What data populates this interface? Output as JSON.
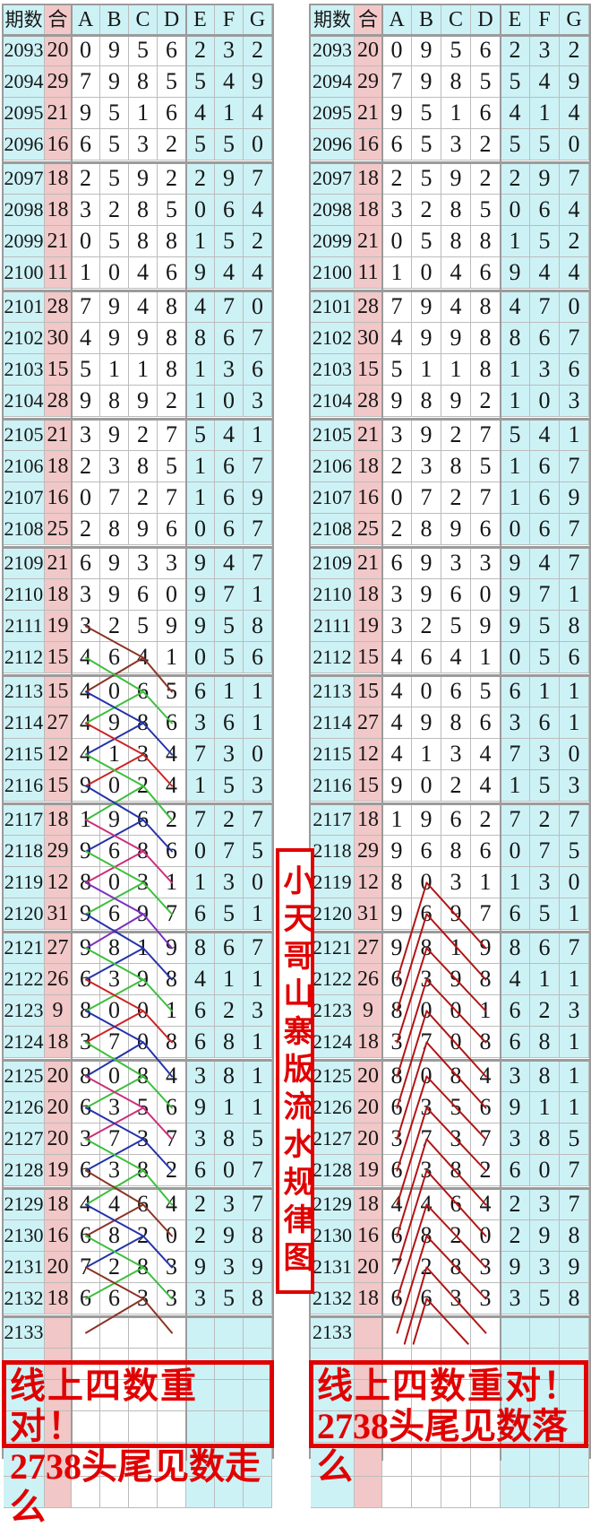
{
  "vertical_title": "小天哥山寨版流水规律图",
  "footer_left": {
    "line1": "线上四数重对！",
    "line2": "2738头尾见数走么"
  },
  "footer_right": {
    "line1": "线上四数重对！",
    "line2": "2738头尾见数落么"
  },
  "colors": {
    "cyan": "#cdf2f6",
    "pink": "#f2c7c7",
    "grid": "#bcbcbc",
    "grid_thick": "#9b9b9b",
    "red_accent": "#e10000",
    "line_brown": "#8a3324",
    "line_green": "#3cbf3c",
    "line_navy": "#2333a8",
    "line_red": "#cc2424",
    "line_magenta": "#cc2e7a",
    "line_purple": "#7d2fbd",
    "line_darkred": "#b01414"
  },
  "chart_data": {
    "type": "table",
    "columns": [
      "期数",
      "合",
      "A",
      "B",
      "C",
      "D",
      "E",
      "F",
      "G"
    ],
    "rows": [
      [
        2093,
        20,
        0,
        9,
        5,
        6,
        2,
        3,
        2
      ],
      [
        2094,
        29,
        7,
        9,
        8,
        5,
        5,
        4,
        9
      ],
      [
        2095,
        21,
        9,
        5,
        1,
        6,
        4,
        1,
        4
      ],
      [
        2096,
        16,
        6,
        5,
        3,
        2,
        5,
        5,
        0
      ],
      [
        2097,
        18,
        2,
        5,
        9,
        2,
        2,
        9,
        7
      ],
      [
        2098,
        18,
        3,
        2,
        8,
        5,
        0,
        6,
        4
      ],
      [
        2099,
        21,
        0,
        5,
        8,
        8,
        1,
        5,
        2
      ],
      [
        2100,
        11,
        1,
        0,
        4,
        6,
        9,
        4,
        4
      ],
      [
        2101,
        28,
        7,
        9,
        4,
        8,
        4,
        7,
        0
      ],
      [
        2102,
        30,
        4,
        9,
        9,
        8,
        8,
        6,
        7
      ],
      [
        2103,
        15,
        5,
        1,
        1,
        8,
        1,
        3,
        6
      ],
      [
        2104,
        28,
        9,
        8,
        9,
        2,
        1,
        0,
        3
      ],
      [
        2105,
        21,
        3,
        9,
        2,
        7,
        5,
        4,
        1
      ],
      [
        2106,
        18,
        2,
        3,
        8,
        5,
        1,
        6,
        7
      ],
      [
        2107,
        16,
        0,
        7,
        2,
        7,
        1,
        6,
        9
      ],
      [
        2108,
        25,
        2,
        8,
        9,
        6,
        0,
        6,
        7
      ],
      [
        2109,
        21,
        6,
        9,
        3,
        3,
        9,
        4,
        7
      ],
      [
        2110,
        18,
        3,
        9,
        6,
        0,
        9,
        7,
        1
      ],
      [
        2111,
        19,
        3,
        2,
        5,
        9,
        9,
        5,
        8
      ],
      [
        2112,
        15,
        4,
        6,
        4,
        1,
        0,
        5,
        6
      ],
      [
        2113,
        15,
        4,
        0,
        6,
        5,
        6,
        1,
        1
      ],
      [
        2114,
        27,
        4,
        9,
        8,
        6,
        3,
        6,
        1
      ],
      [
        2115,
        12,
        4,
        1,
        3,
        4,
        7,
        3,
        0
      ],
      [
        2116,
        15,
        9,
        0,
        2,
        4,
        1,
        5,
        3
      ],
      [
        2117,
        18,
        1,
        9,
        6,
        2,
        7,
        2,
        7
      ],
      [
        2118,
        29,
        9,
        6,
        8,
        6,
        0,
        7,
        5
      ],
      [
        2119,
        12,
        8,
        0,
        3,
        1,
        1,
        3,
        0
      ],
      [
        2120,
        31,
        9,
        6,
        9,
        7,
        6,
        5,
        1
      ],
      [
        2121,
        27,
        9,
        8,
        1,
        9,
        8,
        6,
        7
      ],
      [
        2122,
        26,
        6,
        3,
        9,
        8,
        4,
        1,
        1
      ],
      [
        2123,
        9,
        8,
        0,
        0,
        1,
        6,
        2,
        3
      ],
      [
        2124,
        18,
        3,
        7,
        0,
        8,
        6,
        8,
        1
      ],
      [
        2125,
        20,
        8,
        0,
        8,
        4,
        3,
        8,
        1
      ],
      [
        2126,
        20,
        6,
        3,
        5,
        6,
        9,
        1,
        1
      ],
      [
        2127,
        20,
        3,
        7,
        3,
        7,
        3,
        8,
        5
      ],
      [
        2128,
        19,
        6,
        3,
        8,
        2,
        6,
        0,
        7
      ],
      [
        2129,
        18,
        4,
        4,
        6,
        4,
        2,
        3,
        7
      ],
      [
        2130,
        16,
        6,
        8,
        2,
        0,
        2,
        9,
        8
      ],
      [
        2131,
        20,
        7,
        2,
        8,
        3,
        9,
        3,
        9
      ],
      [
        2132,
        18,
        6,
        6,
        3,
        3,
        3,
        5,
        8
      ],
      [
        2133,
        "",
        "",
        "",
        "",
        "",
        "",
        "",
        ""
      ]
    ]
  },
  "trend_lines": {
    "left": [
      {
        "color": "#8a3324",
        "pts": [
          [
            0,
            2111
          ],
          [
            2,
            2112
          ],
          [
            3,
            2113
          ]
        ]
      },
      {
        "color": "#8a3324",
        "pts": [
          [
            2,
            2112
          ],
          [
            0,
            2113
          ]
        ]
      },
      {
        "color": "#3cbf3c",
        "pts": [
          [
            0,
            2112
          ],
          [
            2,
            2113
          ],
          [
            3,
            2114
          ]
        ]
      },
      {
        "color": "#3cbf3c",
        "pts": [
          [
            2,
            2113
          ],
          [
            0,
            2114
          ]
        ]
      },
      {
        "color": "#2333a8",
        "pts": [
          [
            0,
            2113
          ],
          [
            2,
            2114
          ],
          [
            3,
            2115
          ]
        ]
      },
      {
        "color": "#2333a8",
        "pts": [
          [
            2,
            2114
          ],
          [
            0,
            2115
          ]
        ]
      },
      {
        "color": "#cc2424",
        "pts": [
          [
            0,
            2114
          ],
          [
            2,
            2115
          ],
          [
            3,
            2116
          ]
        ]
      },
      {
        "color": "#cc2424",
        "pts": [
          [
            2,
            2115
          ],
          [
            0,
            2116
          ]
        ]
      },
      {
        "color": "#3cbf3c",
        "pts": [
          [
            0,
            2115
          ],
          [
            2,
            2116
          ],
          [
            3,
            2117
          ]
        ]
      },
      {
        "color": "#3cbf3c",
        "pts": [
          [
            2,
            2116
          ],
          [
            0,
            2117
          ]
        ]
      },
      {
        "color": "#2333a8",
        "pts": [
          [
            0,
            2116
          ],
          [
            2,
            2117
          ],
          [
            3,
            2118
          ]
        ]
      },
      {
        "color": "#2333a8",
        "pts": [
          [
            2,
            2117
          ],
          [
            0,
            2118
          ]
        ]
      },
      {
        "color": "#cc2e7a",
        "pts": [
          [
            0,
            2117
          ],
          [
            2,
            2118
          ],
          [
            3,
            2119
          ]
        ]
      },
      {
        "color": "#cc2e7a",
        "pts": [
          [
            2,
            2118
          ],
          [
            0,
            2119
          ]
        ]
      },
      {
        "color": "#3cbf3c",
        "pts": [
          [
            0,
            2118
          ],
          [
            2,
            2119
          ],
          [
            3,
            2120
          ]
        ]
      },
      {
        "color": "#3cbf3c",
        "pts": [
          [
            2,
            2119
          ],
          [
            0,
            2120
          ]
        ]
      },
      {
        "color": "#7d2fbd",
        "pts": [
          [
            0,
            2119
          ],
          [
            2,
            2120
          ],
          [
            3,
            2121
          ]
        ]
      },
      {
        "color": "#7d2fbd",
        "pts": [
          [
            2,
            2120
          ],
          [
            0,
            2121
          ]
        ]
      },
      {
        "color": "#2333a8",
        "pts": [
          [
            0,
            2120
          ],
          [
            2,
            2121
          ],
          [
            3,
            2122
          ]
        ]
      },
      {
        "color": "#2333a8",
        "pts": [
          [
            2,
            2121
          ],
          [
            0,
            2122
          ]
        ]
      },
      {
        "color": "#3cbf3c",
        "pts": [
          [
            0,
            2121
          ],
          [
            2,
            2122
          ],
          [
            3,
            2123
          ]
        ]
      },
      {
        "color": "#3cbf3c",
        "pts": [
          [
            2,
            2122
          ],
          [
            0,
            2123
          ]
        ]
      },
      {
        "color": "#cc2424",
        "pts": [
          [
            0,
            2122
          ],
          [
            2,
            2123
          ],
          [
            3,
            2124
          ]
        ]
      },
      {
        "color": "#cc2424",
        "pts": [
          [
            2,
            2123
          ],
          [
            0,
            2124
          ]
        ]
      },
      {
        "color": "#2333a8",
        "pts": [
          [
            0,
            2123
          ],
          [
            2,
            2124
          ],
          [
            3,
            2125
          ]
        ]
      },
      {
        "color": "#2333a8",
        "pts": [
          [
            2,
            2124
          ],
          [
            0,
            2125
          ]
        ]
      },
      {
        "color": "#3cbf3c",
        "pts": [
          [
            0,
            2124
          ],
          [
            2,
            2125
          ],
          [
            3,
            2126
          ]
        ]
      },
      {
        "color": "#3cbf3c",
        "pts": [
          [
            2,
            2125
          ],
          [
            0,
            2126
          ]
        ]
      },
      {
        "color": "#cc2e7a",
        "pts": [
          [
            0,
            2125
          ],
          [
            2,
            2126
          ],
          [
            3,
            2127
          ]
        ]
      },
      {
        "color": "#cc2e7a",
        "pts": [
          [
            2,
            2126
          ],
          [
            0,
            2127
          ]
        ]
      },
      {
        "color": "#2333a8",
        "pts": [
          [
            0,
            2126
          ],
          [
            2,
            2127
          ],
          [
            3,
            2128
          ]
        ]
      },
      {
        "color": "#2333a8",
        "pts": [
          [
            2,
            2127
          ],
          [
            0,
            2128
          ]
        ]
      },
      {
        "color": "#3cbf3c",
        "pts": [
          [
            0,
            2127
          ],
          [
            2,
            2128
          ],
          [
            3,
            2129
          ]
        ]
      },
      {
        "color": "#3cbf3c",
        "pts": [
          [
            2,
            2128
          ],
          [
            0,
            2129
          ]
        ]
      },
      {
        "color": "#8a3324",
        "pts": [
          [
            0,
            2128
          ],
          [
            2,
            2129
          ],
          [
            3,
            2130
          ]
        ]
      },
      {
        "color": "#8a3324",
        "pts": [
          [
            2,
            2129
          ],
          [
            0,
            2130
          ]
        ]
      },
      {
        "color": "#2333a8",
        "pts": [
          [
            0,
            2129
          ],
          [
            2,
            2130
          ],
          [
            3,
            2131
          ]
        ]
      },
      {
        "color": "#2333a8",
        "pts": [
          [
            2,
            2130
          ],
          [
            0,
            2131
          ]
        ]
      },
      {
        "color": "#3cbf3c",
        "pts": [
          [
            0,
            2130
          ],
          [
            2,
            2131
          ],
          [
            3,
            2132
          ]
        ]
      },
      {
        "color": "#3cbf3c",
        "pts": [
          [
            2,
            2131
          ],
          [
            0,
            2132
          ]
        ]
      },
      {
        "color": "#8a3324",
        "pts": [
          [
            0,
            2131
          ],
          [
            2,
            2132
          ],
          [
            3,
            2133
          ]
        ]
      },
      {
        "color": "#8a3324",
        "pts": [
          [
            2,
            2132
          ],
          [
            0,
            2133
          ]
        ]
      }
    ],
    "right": [
      {
        "color": "#b01414",
        "pts": [
          [
            1,
            2119
          ],
          [
            0,
            2122
          ]
        ]
      },
      {
        "color": "#b01414",
        "pts": [
          [
            1,
            2119
          ],
          [
            3,
            2121
          ]
        ]
      },
      {
        "color": "#b01414",
        "pts": [
          [
            1,
            2120
          ],
          [
            0,
            2123
          ]
        ]
      },
      {
        "color": "#b01414",
        "pts": [
          [
            1,
            2120
          ],
          [
            3,
            2122
          ]
        ]
      },
      {
        "color": "#b01414",
        "pts": [
          [
            1,
            2121
          ],
          [
            0,
            2124
          ]
        ]
      },
      {
        "color": "#b01414",
        "pts": [
          [
            1,
            2121
          ],
          [
            3,
            2123
          ]
        ]
      },
      {
        "color": "#b01414",
        "pts": [
          [
            1,
            2122
          ],
          [
            0,
            2125
          ]
        ]
      },
      {
        "color": "#b01414",
        "pts": [
          [
            1,
            2122
          ],
          [
            3,
            2124
          ]
        ]
      },
      {
        "color": "#b01414",
        "pts": [
          [
            1,
            2123
          ],
          [
            0,
            2126
          ]
        ]
      },
      {
        "color": "#b01414",
        "pts": [
          [
            1,
            2123
          ],
          [
            3,
            2125
          ]
        ]
      },
      {
        "color": "#b01414",
        "pts": [
          [
            1,
            2124
          ],
          [
            0,
            2127
          ]
        ]
      },
      {
        "color": "#b01414",
        "pts": [
          [
            1,
            2124
          ],
          [
            3,
            2126
          ]
        ]
      },
      {
        "color": "#b01414",
        "pts": [
          [
            1,
            2125
          ],
          [
            0,
            2128
          ]
        ]
      },
      {
        "color": "#b01414",
        "pts": [
          [
            1,
            2125
          ],
          [
            3,
            2127
          ]
        ]
      },
      {
        "color": "#b01414",
        "pts": [
          [
            1,
            2126
          ],
          [
            0,
            2129
          ]
        ]
      },
      {
        "color": "#b01414",
        "pts": [
          [
            1,
            2126
          ],
          [
            3,
            2128
          ]
        ]
      },
      {
        "color": "#b01414",
        "pts": [
          [
            1,
            2127
          ],
          [
            0,
            2130
          ]
        ]
      },
      {
        "color": "#b01414",
        "pts": [
          [
            1,
            2127
          ],
          [
            3,
            2129
          ]
        ]
      },
      {
        "color": "#b01414",
        "pts": [
          [
            1,
            2128
          ],
          [
            0,
            2131
          ]
        ]
      },
      {
        "color": "#b01414",
        "pts": [
          [
            1,
            2128
          ],
          [
            3,
            2130
          ]
        ]
      },
      {
        "color": "#b01414",
        "pts": [
          [
            1,
            2129
          ],
          [
            0,
            2132
          ]
        ]
      },
      {
        "color": "#b01414",
        "pts": [
          [
            1,
            2129
          ],
          [
            3,
            2131
          ]
        ]
      },
      {
        "color": "#b01414",
        "pts": [
          [
            1,
            2130
          ],
          [
            0,
            2133
          ]
        ]
      },
      {
        "color": "#b01414",
        "pts": [
          [
            1,
            2130
          ],
          [
            3,
            2132
          ]
        ]
      },
      {
        "color": "#b01414",
        "pts": [
          [
            1,
            2131
          ],
          [
            0.25,
            2133.35
          ]
        ]
      },
      {
        "color": "#b01414",
        "pts": [
          [
            1,
            2131
          ],
          [
            3,
            2133
          ]
        ]
      },
      {
        "color": "#b01414",
        "pts": [
          [
            1,
            2132
          ],
          [
            0.55,
            2133.35
          ]
        ]
      },
      {
        "color": "#b01414",
        "pts": [
          [
            1,
            2132
          ],
          [
            2.4,
            2133.35
          ]
        ]
      }
    ]
  }
}
